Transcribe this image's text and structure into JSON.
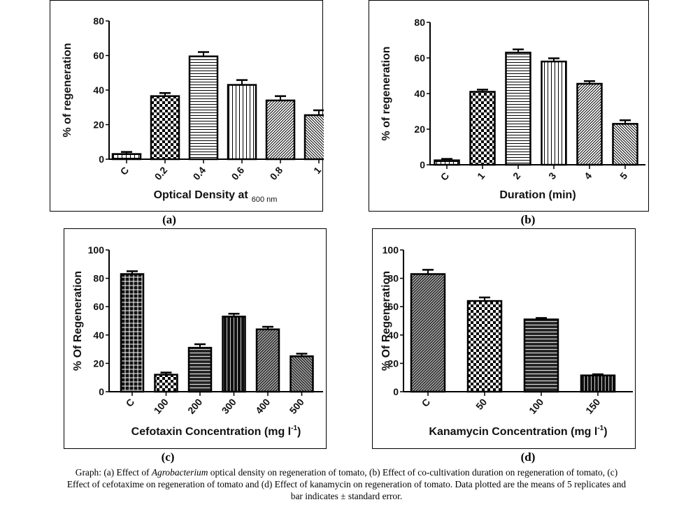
{
  "chart_data": [
    {
      "id": "a",
      "type": "bar",
      "panel_label": "(a)",
      "title": "",
      "xlabel": "Optical Density at",
      "xlabel_subscript": "600 nm",
      "ylabel": "% of regeneration",
      "ylim": [
        0,
        80
      ],
      "yticks": [
        0,
        20,
        40,
        60,
        80
      ],
      "categories": [
        "C",
        "0.2",
        "0.4",
        "0.6",
        "0.8",
        "1"
      ],
      "values": [
        3,
        36.5,
        59.5,
        43,
        34,
        25.5
      ],
      "errors": [
        1.2,
        1.8,
        2.5,
        2.8,
        2.5,
        2.8
      ],
      "patterns": [
        "grid-small",
        "checker",
        "hlines",
        "vlines",
        "diag-right",
        "diag-left"
      ],
      "grid": false
    },
    {
      "id": "b",
      "type": "bar",
      "panel_label": "(b)",
      "title": "",
      "xlabel": "Duration (min)",
      "xlabel_subscript": "",
      "ylabel": "% of regeneration",
      "ylim": [
        0,
        80
      ],
      "yticks": [
        0,
        20,
        40,
        60,
        80
      ],
      "categories": [
        "C",
        "1",
        "2",
        "3",
        "4",
        "5"
      ],
      "values": [
        2.5,
        41,
        63,
        58,
        45.5,
        23
      ],
      "errors": [
        0.8,
        1.2,
        1.8,
        1.8,
        1.5,
        2
      ],
      "patterns": [
        "grid-small",
        "checker",
        "hlines",
        "vlines",
        "diag-right",
        "diag-left"
      ],
      "grid": false
    },
    {
      "id": "c",
      "type": "bar",
      "panel_label": "(c)",
      "title": "",
      "xlabel": "Cefotaxin Concentration (mg l",
      "xlabel_superscript": "-1",
      "xlabel_suffix": ")",
      "ylabel": "% Of Regeneration",
      "ylim": [
        0,
        100
      ],
      "yticks": [
        0,
        20,
        40,
        60,
        80,
        100
      ],
      "categories": [
        "C",
        "100",
        "200",
        "300",
        "400",
        "500"
      ],
      "values": [
        83,
        12,
        31,
        53,
        44,
        25
      ],
      "errors": [
        2,
        1.5,
        2.5,
        2,
        1.8,
        1.8
      ],
      "patterns": [
        "grid-dark",
        "checker",
        "hlines-dark",
        "vlines-dark",
        "diag-right-dark",
        "diag-left-dark"
      ],
      "grid": false
    },
    {
      "id": "d",
      "type": "bar",
      "panel_label": "(d)",
      "title": "",
      "xlabel": "Kanamycin Concentration (mg l",
      "xlabel_superscript": "-1",
      "xlabel_suffix": ")",
      "ylabel": "% Of Regeneration",
      "ylim": [
        0,
        100
      ],
      "yticks": [
        0,
        20,
        40,
        60,
        80,
        100
      ],
      "categories": [
        "C",
        "50",
        "100",
        "150"
      ],
      "values": [
        83,
        64,
        51,
        11.5
      ],
      "errors": [
        3,
        2.5,
        1,
        0.8
      ],
      "patterns": [
        "diag-right-dark",
        "checker",
        "hlines-dark",
        "vlines-dark"
      ],
      "grid": false
    }
  ],
  "caption": {
    "prefix": "Graph: (a) Effect of ",
    "italic": "Agrobacterium",
    "line1_rest": " optical density on regeneration of tomato, (b) Effect of co-cultivation duration on regeneration of tomato, (c)",
    "line2": "Effect of cefotaxime on regeneration of tomato and (d) Effect of kanamycin on regeneration of tomato. Data plotted are the means of 5 replicates and",
    "line3": "bar indicates ± standard error."
  }
}
